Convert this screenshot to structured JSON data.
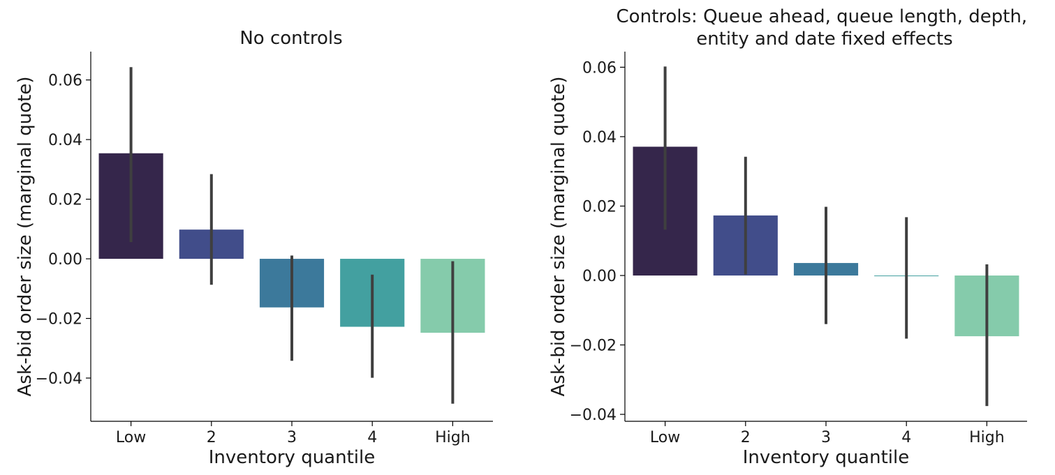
{
  "chart_data": [
    {
      "type": "bar",
      "title": "No controls",
      "xlabel": "Inventory quantile",
      "ylabel": "Ask-bid order size (marginal quote)",
      "categories": [
        "Low",
        "2",
        "3",
        "4",
        "High"
      ],
      "values": [
        0.0354,
        0.0098,
        -0.0163,
        -0.0228,
        -0.0248
      ],
      "error_low": [
        0.0056,
        -0.0087,
        -0.0342,
        -0.0399,
        -0.0486
      ],
      "error_high": [
        0.0643,
        0.0284,
        0.0011,
        -0.0053,
        -0.0008
      ],
      "yticks": [
        -0.04,
        -0.02,
        0.0,
        0.02,
        0.04,
        0.06
      ],
      "ytick_labels": [
        "−0.04",
        "−0.02",
        "0.00",
        "0.02",
        "0.04",
        "0.06"
      ],
      "ylim": [
        -0.0545,
        0.0695
      ],
      "colors": [
        "#35264b",
        "#414d8a",
        "#3c799b",
        "#43a0a0",
        "#85cbab"
      ],
      "errorbar_color": "#3f3f3f",
      "grid": false
    },
    {
      "type": "bar",
      "title": "Controls: Queue ahead, queue length, depth,\nentity and date fixed effects",
      "title_lines": [
        "Controls: Queue ahead, queue length, depth,",
        "entity and date fixed effects"
      ],
      "xlabel": "Inventory quantile",
      "ylabel": "Ask-bid order size (marginal quote)",
      "categories": [
        "Low",
        "2",
        "3",
        "4",
        "High"
      ],
      "values": [
        0.0371,
        0.0173,
        0.0036,
        -0.0002,
        -0.0175
      ],
      "error_low": [
        0.0132,
        0.0003,
        -0.014,
        -0.0182,
        -0.0376
      ],
      "error_high": [
        0.0602,
        0.0342,
        0.0198,
        0.0168,
        0.0032
      ],
      "yticks": [
        -0.04,
        -0.02,
        0.0,
        0.02,
        0.04,
        0.06
      ],
      "ytick_labels": [
        "−0.04",
        "−0.02",
        "0.00",
        "0.02",
        "0.04",
        "0.06"
      ],
      "ylim": [
        -0.042,
        0.0645
      ],
      "colors": [
        "#35264b",
        "#414d8a",
        "#3c799b",
        "#43a0a0",
        "#85cbab"
      ],
      "errorbar_color": "#3f3f3f",
      "grid": false
    }
  ]
}
